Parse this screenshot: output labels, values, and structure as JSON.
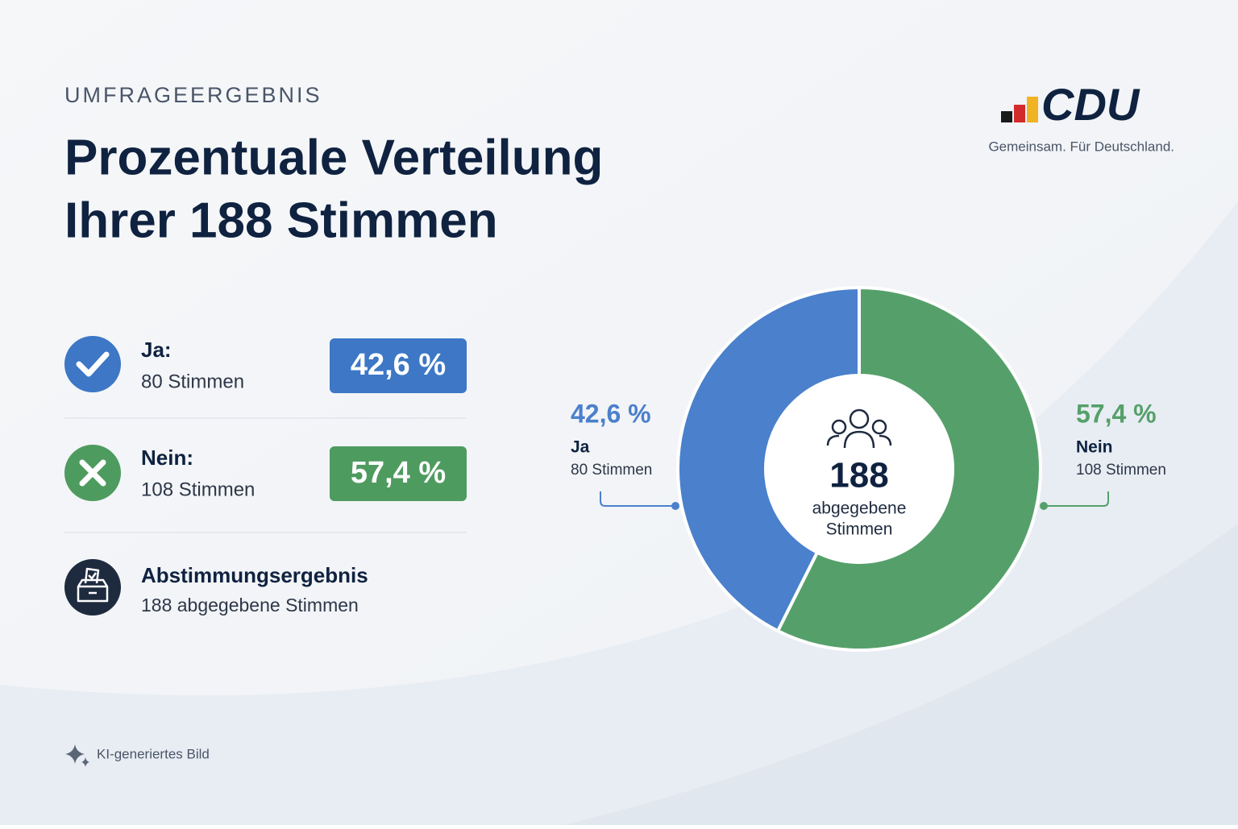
{
  "header": {
    "kicker": "UMFRAGEERGEBNIS",
    "title_line1": "Prozentuale Verteilung",
    "title_line2": "Ihrer 188 Stimmen"
  },
  "brand": {
    "logo": "CDU",
    "tagline": "Gemeinsam. Für Deutschland."
  },
  "summary": {
    "rows": [
      {
        "label": "Ja:"
      },
      {
        "label": "Nein:"
      }
    ],
    "total_label": "Abstimmungsergebnis",
    "total_detail": "188 abgegebene Stimmen"
  },
  "chart_data": {
    "type": "donut",
    "categories": [
      "Ja",
      "Nein"
    ],
    "values": [
      42.6,
      57.4
    ],
    "value_labels": [
      "42,6 %",
      "57,4 %"
    ],
    "count_labels": [
      "80 Stimmen",
      "108 Stimmen"
    ],
    "colors": [
      "#4a80cc",
      "#55a06a"
    ],
    "center_value": "188",
    "center_label_1": "abgegebene",
    "center_label_2": "Stimmen"
  },
  "footer": {
    "note": "KI-generiertes Bild"
  }
}
